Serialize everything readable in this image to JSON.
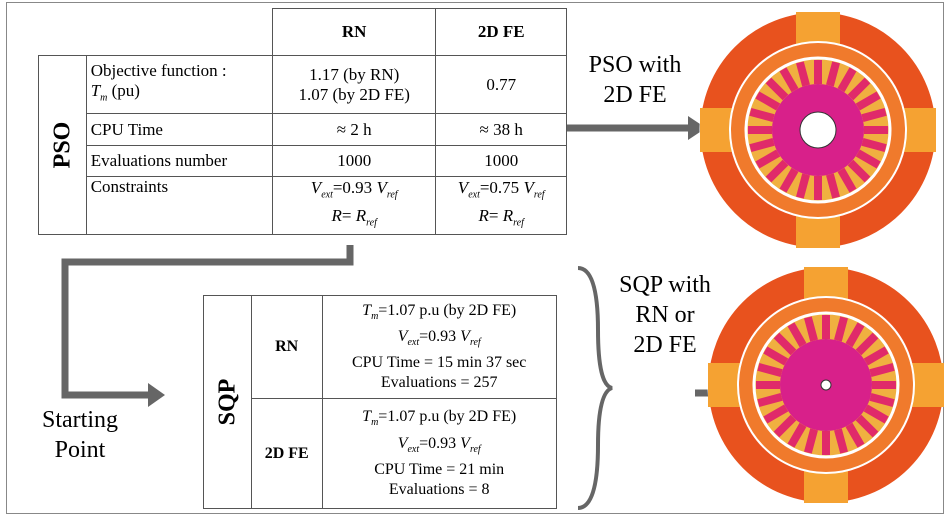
{
  "pso_table": {
    "side_label": "PSO",
    "headers": [
      "RN",
      "2D FE"
    ],
    "rows": [
      {
        "label": [
          "Objective function :",
          [
            "T",
            "m",
            " (pu)"
          ]
        ],
        "rn": [
          "1.17 (by RN)",
          "1.07 (by 2D FE)"
        ],
        "fe": [
          "0.77"
        ]
      },
      {
        "label": [
          "CPU Time"
        ],
        "rn": [
          "≈ 2 h"
        ],
        "fe": [
          "≈ 38 h"
        ]
      },
      {
        "label": [
          "Evaluations number"
        ],
        "rn": [
          "1000"
        ],
        "fe": [
          "1000"
        ]
      },
      {
        "label": [
          "Constraints"
        ],
        "rn": [
          [
            "V",
            "ext",
            "=0.93 ",
            "V",
            "ref"
          ],
          [
            "R",
            "",
            "= ",
            "R",
            "ref"
          ]
        ],
        "fe": [
          [
            "V",
            "ext",
            "=0.75 ",
            "V",
            "ref"
          ],
          [
            "R",
            "",
            "= ",
            "R",
            "ref"
          ]
        ]
      }
    ]
  },
  "pso_label": [
    "PSO with",
    "2D FE"
  ],
  "sqp_label": [
    "SQP with",
    "RN or",
    "2D FE"
  ],
  "starting_point": [
    "Starting",
    "Point"
  ],
  "sqp_table": {
    "side_label": "SQP",
    "rows": [
      {
        "label": "RN",
        "lines": [
          [
            "T",
            "m",
            "=1.07  p.u (by 2D FE)"
          ],
          [
            "V",
            "ext",
            "=0.93 ",
            "V",
            "ref"
          ],
          "CPU Time = 15 min 37 sec",
          "Evaluations = 257"
        ]
      },
      {
        "label": "2D FE",
        "lines": [
          [
            "T",
            "m",
            "=1.07  p.u (by 2D FE)"
          ],
          [
            "V",
            "ext",
            "=0.93 ",
            "V",
            "ref"
          ],
          "CPU Time = 21 min",
          "Evaluations = 8"
        ]
      }
    ]
  }
}
